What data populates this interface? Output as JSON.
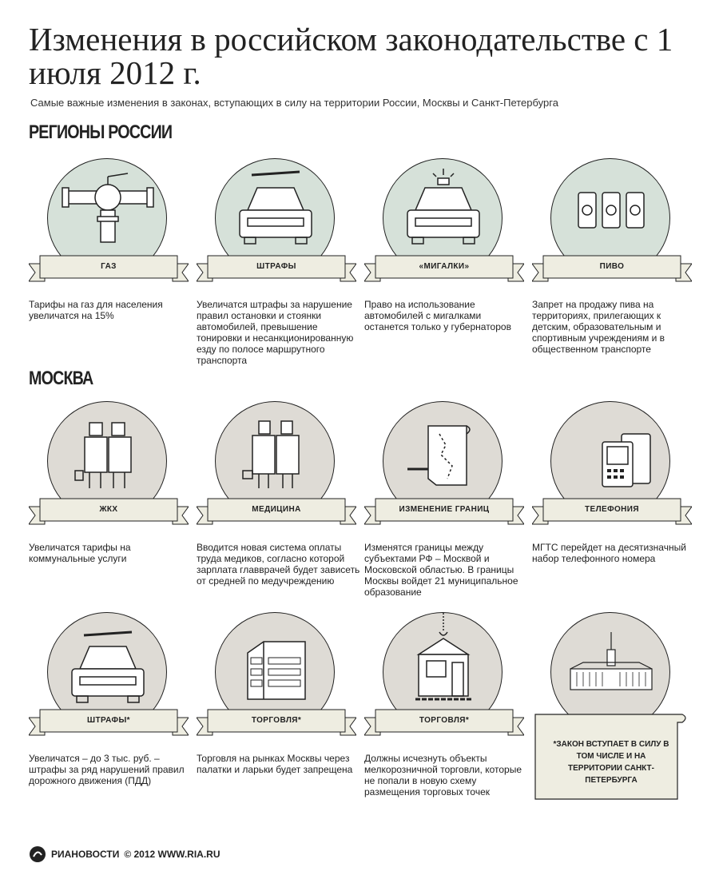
{
  "title": "Изменения в российском законодательстве с 1 июля 2012 г.",
  "subtitle": "Самые важные изменения в законах, вступающих в силу на территории России, Москвы и Санкт-Петербурга",
  "sections": {
    "russia": "РЕГИОНЫ РОССИИ",
    "moscow": "МОСКВА"
  },
  "colors": {
    "sage": "#d6e1d9",
    "stone": "#dedbd5",
    "ribbon": "#eeede1",
    "ink": "#222222"
  },
  "cards": [
    {
      "label": "ГАЗ",
      "icon": "gas-pipe-icon",
      "desc": "Тарифы на газ для населения увеличатся на 15%"
    },
    {
      "label": "ШТРАФЫ",
      "icon": "car-barrier-icon",
      "desc": "Увеличатся штрафы за нарушение правил остановки и стоянки автомобилей, превышение тонировки и несанкционированную езду по полосе маршрутного транспорта"
    },
    {
      "label": "«МИГАЛКИ»",
      "icon": "car-siren-icon",
      "desc": "Право на использование автомобилей с мигалками останется только у губернаторов"
    },
    {
      "label": "ПИВО",
      "icon": "beer-cans-icon",
      "desc": "Запрет на продажу пива на территориях, прилегающих к детским, образовательным и спортивным учреждениям и в общественном транспорте"
    },
    {
      "label": "ЖКХ",
      "icon": "utility-workers-icon",
      "desc": "Увеличатся тарифы на коммунальные услуги"
    },
    {
      "label": "МЕДИЦИНА",
      "icon": "doctors-icon",
      "desc": "Вводится новая система оплаты труда медиков, согласно которой зарплата главврачей будет зависеть от средней по медучреждению"
    },
    {
      "label": "ИЗМЕНЕНИЕ ГРАНИЦ",
      "icon": "map-scroll-icon",
      "desc": "Изменятся границы между субъектами РФ – Москвой и Московской областью. В границы Москвы войдет 21 муниципальное образование"
    },
    {
      "label": "ТЕЛЕФОНИЯ",
      "icon": "phone-icon",
      "desc": "МГТС перейдет на десятизначный набор телефонного номера"
    },
    {
      "label": "ШТРАФЫ*",
      "icon": "car-barrier-icon",
      "desc": "Увеличатся – до 3 тыс. руб. – штрафы за ряд нарушений правил дорожного движения (ПДД)"
    },
    {
      "label": "ТОРГОВЛЯ*",
      "icon": "market-stall-icon",
      "desc": "Торговля на рынках Москвы через палатки и ларьки будет запрещена"
    },
    {
      "label": "ТОРГОВЛЯ*",
      "icon": "kiosk-crane-icon",
      "desc": "Должны исчезнуть объекты мелкорозничной торговли, которые не попали в новую схему размещения торговых точек"
    },
    {
      "label": "",
      "icon": "smolny-building-icon",
      "desc": ""
    }
  ],
  "note": "*ЗАКОН ВСТУПАЕТ В СИЛУ В ТОМ ЧИСЛЕ И НА ТЕРРИТОРИИ САНКТ-ПЕТЕРБУРГА",
  "footer": {
    "brand": "РИАНОВОСТИ",
    "copyright": "© 2012 WWW.RIA.RU"
  }
}
